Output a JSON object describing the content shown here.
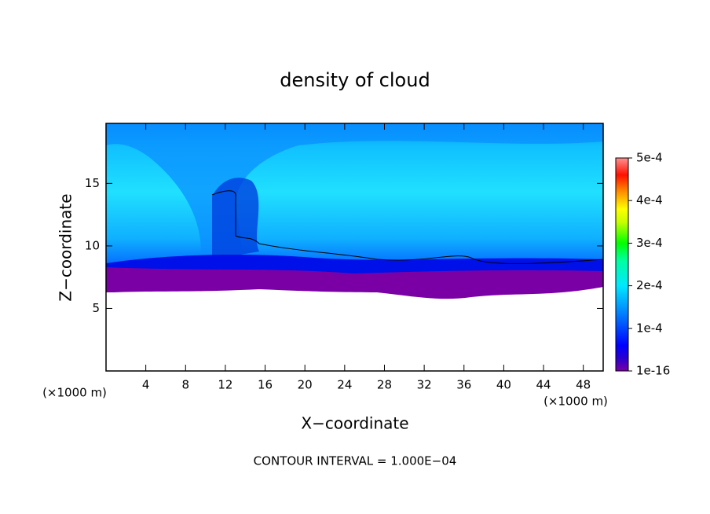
{
  "chart_data": {
    "type": "contour",
    "title": "density of cloud",
    "x_label": "X−coordinate",
    "y_label": "Z−coordinate",
    "x_unit": "(×1000 m)",
    "y_unit": "(×1000 m)",
    "annotation": "CONTOUR INTERVAL = 1.000E−04",
    "xlim": [
      0,
      50
    ],
    "xticks": [
      4,
      8,
      12,
      16,
      20,
      24,
      28,
      32,
      36,
      40,
      44,
      48
    ],
    "ylim": [
      0,
      19.8
    ],
    "yticks": [
      5,
      10,
      15
    ],
    "colorbar_lim": [
      0,
      0.0005
    ],
    "colorbar_ticks": [
      {
        "value": 0.0005,
        "label": "5e-4"
      },
      {
        "value": 0.0004,
        "label": "4e-4"
      },
      {
        "value": 0.0003,
        "label": "3e-4"
      },
      {
        "value": 0.0002,
        "label": "2e-4"
      },
      {
        "value": 0.0001,
        "label": "1e-4"
      },
      {
        "value": 1e-16,
        "label": "1e-16"
      }
    ]
  }
}
